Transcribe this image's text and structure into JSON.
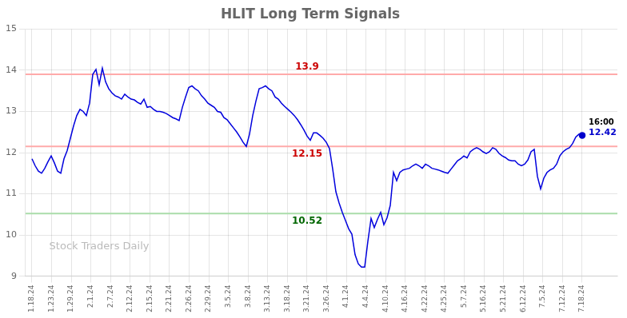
{
  "chart_data": {
    "type": "line",
    "title": "HLIT Long Term Signals",
    "color": "#0000dd",
    "grid": true,
    "x": [
      0,
      1,
      2,
      3,
      4,
      5,
      6,
      7,
      8,
      9,
      10,
      11,
      12,
      13,
      14,
      15,
      16,
      17,
      18,
      19,
      20,
      21,
      22,
      23,
      24,
      25,
      26,
      27,
      28,
      29,
      30,
      31,
      32,
      33,
      34,
      35,
      36,
      37,
      38,
      39,
      40,
      41,
      42,
      43,
      44,
      45,
      46,
      47,
      48,
      49,
      50,
      51,
      52,
      53,
      54,
      55,
      56,
      57,
      58,
      59,
      60,
      61,
      62,
      63,
      64,
      65,
      66,
      67,
      68,
      69,
      70,
      71,
      72,
      73,
      74,
      75,
      76,
      77,
      78,
      79,
      80,
      81,
      82,
      83,
      84,
      85,
      86,
      87,
      88,
      89,
      90,
      91,
      92,
      93,
      94,
      95,
      96,
      97,
      98,
      99,
      100,
      101,
      102,
      103,
      104,
      105,
      106,
      107,
      108,
      109,
      110,
      111,
      112,
      113,
      114,
      115,
      116,
      117,
      118,
      119,
      120,
      121,
      122,
      123,
      124,
      125,
      126,
      127,
      128,
      129,
      130,
      131,
      132,
      133,
      134,
      135,
      136,
      137,
      138,
      139,
      140,
      141,
      142,
      143,
      144,
      145,
      146,
      147,
      148,
      149,
      150,
      151,
      152,
      153,
      154,
      155,
      156,
      157,
      158,
      159,
      160,
      161,
      162,
      163,
      164,
      165,
      166,
      167,
      168,
      169,
      170,
      171,
      172
    ],
    "values": [
      11.85,
      11.68,
      11.55,
      11.5,
      11.62,
      11.78,
      11.92,
      11.75,
      11.55,
      11.5,
      11.85,
      12.05,
      12.35,
      12.65,
      12.9,
      13.05,
      13.0,
      12.9,
      13.2,
      13.9,
      14.02,
      13.65,
      14.05,
      13.72,
      13.55,
      13.45,
      13.38,
      13.35,
      13.3,
      13.42,
      13.35,
      13.3,
      13.28,
      13.22,
      13.18,
      13.3,
      13.1,
      13.12,
      13.05,
      13.0,
      13.0,
      12.98,
      12.95,
      12.9,
      12.85,
      12.82,
      12.78,
      13.1,
      13.35,
      13.58,
      13.62,
      13.55,
      13.5,
      13.38,
      13.3,
      13.2,
      13.15,
      13.1,
      13.0,
      12.98,
      12.85,
      12.8,
      12.7,
      12.6,
      12.5,
      12.38,
      12.25,
      12.15,
      12.45,
      12.9,
      13.25,
      13.55,
      13.58,
      13.62,
      13.55,
      13.5,
      13.35,
      13.3,
      13.2,
      13.12,
      13.05,
      12.98,
      12.9,
      12.8,
      12.68,
      12.55,
      12.4,
      12.3,
      12.48,
      12.48,
      12.42,
      12.35,
      12.25,
      12.1,
      11.6,
      11.05,
      10.78,
      10.55,
      10.35,
      10.15,
      10.02,
      9.52,
      9.3,
      9.22,
      9.22,
      9.85,
      10.4,
      10.18,
      10.38,
      10.55,
      10.25,
      10.42,
      10.72,
      11.52,
      11.32,
      11.52,
      11.58,
      11.6,
      11.62,
      11.68,
      11.72,
      11.68,
      11.62,
      11.72,
      11.68,
      11.62,
      11.6,
      11.58,
      11.55,
      11.52,
      11.5,
      11.6,
      11.7,
      11.8,
      11.85,
      11.92,
      11.87,
      12.02,
      12.08,
      12.12,
      12.08,
      12.02,
      11.98,
      12.02,
      12.12,
      12.08,
      11.98,
      11.92,
      11.88,
      11.82,
      11.8,
      11.8,
      11.72,
      11.68,
      11.72,
      11.82,
      12.02,
      12.08,
      11.42,
      11.12,
      11.38,
      11.52,
      11.58,
      11.62,
      11.72,
      11.92,
      12.02,
      12.08,
      12.12,
      12.22,
      12.38,
      12.45,
      12.42
    ],
    "xlim": [
      -2,
      183
    ],
    "xticks": [
      {
        "value": 0,
        "label": "1.18.24"
      },
      {
        "value": 6.142857142857143,
        "label": "1.23.24"
      },
      {
        "value": 12.285714285714286,
        "label": "1.29.24"
      },
      {
        "value": 18.428571428571427,
        "label": "2.1.24"
      },
      {
        "value": 24.571428571428573,
        "label": "2.7.24"
      },
      {
        "value": 30.714285714285715,
        "label": "2.12.24"
      },
      {
        "value": 36.857142857142854,
        "label": "2.15.24"
      },
      {
        "value": 43,
        "label": "2.21.24"
      },
      {
        "value": 49.142857142857146,
        "label": "2.26.24"
      },
      {
        "value": 55.285714285714285,
        "label": "2.29.24"
      },
      {
        "value": 61.42857142857143,
        "label": "3.5.24"
      },
      {
        "value": 67.57142857142857,
        "label": "3.8.24"
      },
      {
        "value": 73.71428571428571,
        "label": "3.13.24"
      },
      {
        "value": 79.85714285714286,
        "label": "3.18.24"
      },
      {
        "value": 86,
        "label": "3.21.24"
      },
      {
        "value": 92.14285714285714,
        "label": "3.26.24"
      },
      {
        "value": 98.28571428571429,
        "label": "4.1.24"
      },
      {
        "value": 104.42857142857143,
        "label": "4.4.24"
      },
      {
        "value": 110.57142857142857,
        "label": "4.10.24"
      },
      {
        "value": 116.71428571428571,
        "label": "4.16.24"
      },
      {
        "value": 122.85714285714286,
        "label": "4.22.24"
      },
      {
        "value": 129,
        "label": "4.25.24"
      },
      {
        "value": 135.14285714285714,
        "label": "5.7.24"
      },
      {
        "value": 141.28571428571428,
        "label": "5.16.24"
      },
      {
        "value": 147.42857142857142,
        "label": "5.21.24"
      },
      {
        "value": 153.57142857142858,
        "label": "6.12.24"
      },
      {
        "value": 159.71428571428572,
        "label": "7.5.24"
      },
      {
        "value": 165.85714285714286,
        "label": "7.12.24"
      },
      {
        "value": 172,
        "label": "7.18.24"
      }
    ],
    "ylim": [
      9,
      15
    ],
    "yticks": [
      9,
      10,
      11,
      12,
      13,
      14,
      15
    ],
    "hlines": [
      {
        "value": 13.9,
        "color": "#ffaaaa",
        "label": "13.9",
        "label_color": "#cc0000"
      },
      {
        "value": 12.15,
        "color": "#ffaaaa",
        "label": "12.15",
        "label_color": "#cc0000"
      },
      {
        "value": 10.52,
        "color": "#aaddaa",
        "label": "10.52",
        "label_color": "#006600"
      }
    ],
    "end_point": {
      "color": "#0000cc",
      "time_label": "16:00",
      "value_label": "12.42"
    },
    "watermark": {
      "text": "Stock Traders Daily",
      "color": "#bbbbbb"
    }
  }
}
